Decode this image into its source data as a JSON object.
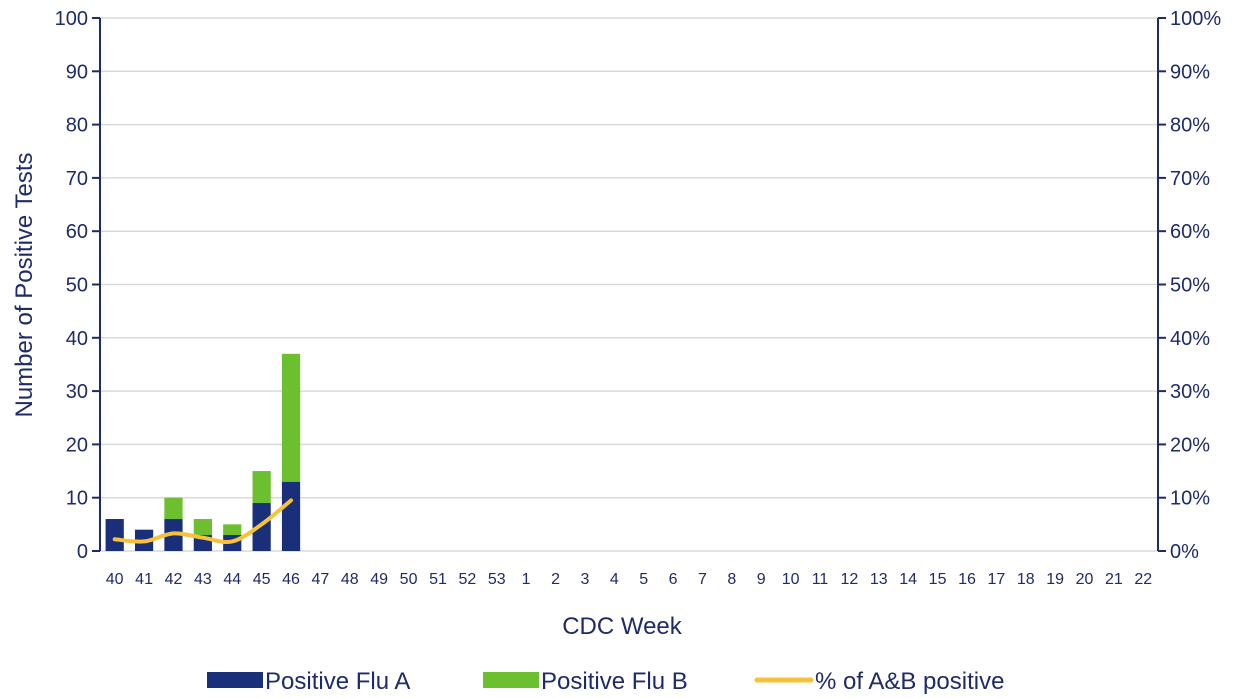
{
  "chart_data": {
    "type": "bar",
    "stacked": true,
    "title": "",
    "xlabel": "CDC Week",
    "ylabel": "Number of Positive Tests",
    "y2label": "",
    "ylim": [
      0,
      100
    ],
    "y2lim": [
      0,
      100
    ],
    "yticks": [
      "0",
      "10",
      "20",
      "30",
      "40",
      "50",
      "60",
      "70",
      "80",
      "90",
      "100"
    ],
    "y2ticks": [
      "0%",
      "10%",
      "20%",
      "30%",
      "40%",
      "50%",
      "60%",
      "70%",
      "80%",
      "90%",
      "100%"
    ],
    "grid": true,
    "legend_position": "bottom",
    "categories": [
      "40",
      "41",
      "42",
      "43",
      "44",
      "45",
      "46",
      "47",
      "48",
      "49",
      "50",
      "51",
      "52",
      "53",
      "1",
      "2",
      "3",
      "4",
      "5",
      "6",
      "7",
      "8",
      "9",
      "10",
      "11",
      "12",
      "13",
      "14",
      "15",
      "16",
      "17",
      "18",
      "19",
      "20",
      "21",
      "22"
    ],
    "series": [
      {
        "name": "Positive Flu A",
        "kind": "bar",
        "color": "#1a2f7a",
        "values": [
          6,
          4,
          6,
          3,
          3,
          9,
          13,
          null,
          null,
          null,
          null,
          null,
          null,
          null,
          null,
          null,
          null,
          null,
          null,
          null,
          null,
          null,
          null,
          null,
          null,
          null,
          null,
          null,
          null,
          null,
          null,
          null,
          null,
          null,
          null,
          null
        ]
      },
      {
        "name": "Positive Flu B",
        "kind": "bar",
        "color": "#6cbf2e",
        "values": [
          0,
          0,
          4,
          3,
          2,
          6,
          24,
          null,
          null,
          null,
          null,
          null,
          null,
          null,
          null,
          null,
          null,
          null,
          null,
          null,
          null,
          null,
          null,
          null,
          null,
          null,
          null,
          null,
          null,
          null,
          null,
          null,
          null,
          null,
          null,
          null
        ]
      },
      {
        "name": "% of A&B positive",
        "kind": "line",
        "axis": "right",
        "color": "#f7c23a",
        "values": [
          2.2,
          1.8,
          3.3,
          2.5,
          1.8,
          5.0,
          9.5,
          null,
          null,
          null,
          null,
          null,
          null,
          null,
          null,
          null,
          null,
          null,
          null,
          null,
          null,
          null,
          null,
          null,
          null,
          null,
          null,
          null,
          null,
          null,
          null,
          null,
          null,
          null,
          null,
          null
        ]
      }
    ]
  }
}
